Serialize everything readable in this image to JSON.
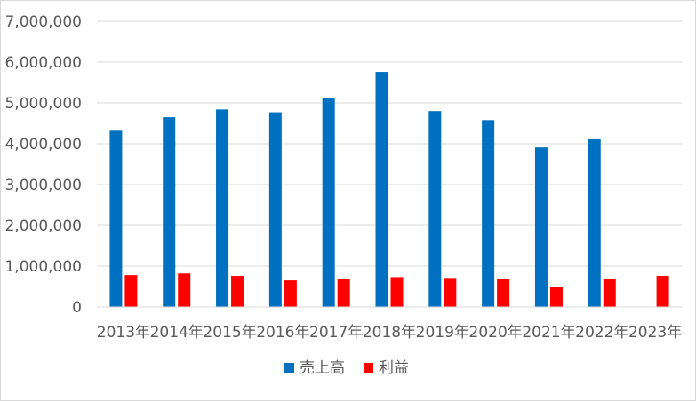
{
  "chart_data": {
    "type": "bar",
    "title": "",
    "xlabel": "",
    "ylabel": "",
    "categories": [
      "2013年",
      "2014年",
      "2015年",
      "2016年",
      "2017年",
      "2018年",
      "2019年",
      "2020年",
      "2021年",
      "2022年",
      "2023年"
    ],
    "series": [
      {
        "name": "売上高",
        "color": "#0070c0",
        "values": [
          4320000,
          4650000,
          4840000,
          4770000,
          5120000,
          5760000,
          4800000,
          4580000,
          3910000,
          4110000,
          null
        ]
      },
      {
        "name": "利益",
        "color": "#ff0000",
        "values": [
          780000,
          820000,
          760000,
          650000,
          690000,
          730000,
          710000,
          690000,
          490000,
          690000,
          760000
        ]
      }
    ],
    "ylim": [
      0,
      7000000
    ],
    "yticks": [
      0,
      1000000,
      2000000,
      3000000,
      4000000,
      5000000,
      6000000,
      7000000
    ],
    "ytick_labels": [
      "0",
      "1,000,000",
      "2,000,000",
      "3,000,000",
      "4,000,000",
      "5,000,000",
      "6,000,000",
      "7,000,000"
    ],
    "grid": true,
    "gridline_color": "#d9d9d9",
    "legend_position": "bottom"
  }
}
